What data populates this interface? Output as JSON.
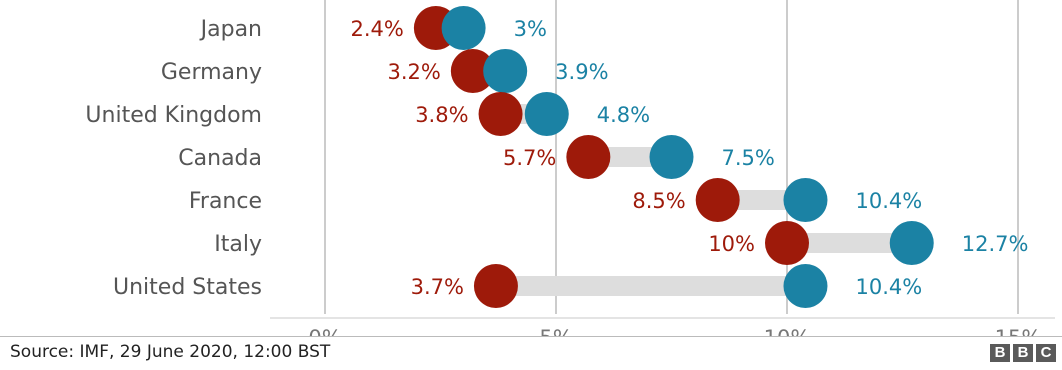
{
  "chart_data": {
    "type": "dumbbell",
    "categories": [
      "Japan",
      "Germany",
      "United Kingdom",
      "Canada",
      "France",
      "Italy",
      "United States"
    ],
    "series": [
      {
        "values": [
          2.4,
          3.2,
          3.8,
          5.7,
          8.5,
          10,
          3.7
        ],
        "labels": [
          "2.4%",
          "3.2%",
          "3.8%",
          "5.7%",
          "8.5%",
          "10%",
          "3.7%"
        ],
        "color": "#9e1a0a"
      },
      {
        "values": [
          3,
          3.9,
          4.8,
          7.5,
          10.4,
          12.7,
          10.4
        ],
        "labels": [
          "3%",
          "3.9%",
          "4.8%",
          "7.5%",
          "10.4%",
          "12.7%",
          "10.4%"
        ],
        "color": "#1b82a4"
      }
    ],
    "x_ticks": [
      0,
      5,
      10,
      15
    ],
    "x_tick_labels": [
      "0%",
      "5%",
      "10%",
      "15%"
    ],
    "xlim": [
      0,
      15
    ],
    "grid": true,
    "connector_color": "#dddddd"
  },
  "footer": {
    "source": "Source: IMF, 29 June 2020, 12:00 BST",
    "logo": [
      "B",
      "B",
      "C"
    ]
  }
}
